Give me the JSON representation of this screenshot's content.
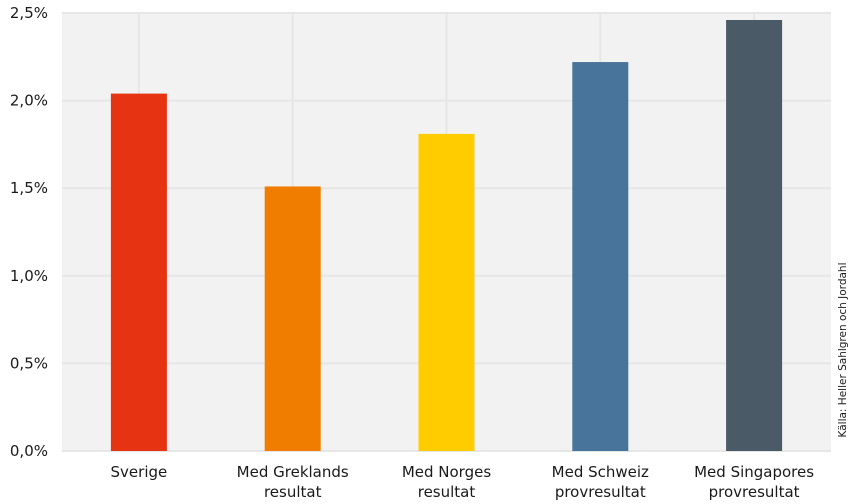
{
  "chart_data": {
    "type": "bar",
    "title": "",
    "xlabel": "",
    "ylabel": "",
    "categories": [
      [
        "Sverige"
      ],
      [
        "Med Greklands",
        "resultat"
      ],
      [
        "Med Norges",
        "resultat"
      ],
      [
        "Med Schweiz",
        "provresultat"
      ],
      [
        "Med Singapores",
        "provresultat"
      ]
    ],
    "values": [
      2.04,
      1.51,
      1.81,
      2.22,
      2.46
    ],
    "colors": [
      "#e63312",
      "#f07d00",
      "#ffcc00",
      "#48739a",
      "#4a5a66"
    ],
    "ylim": [
      0,
      2.5
    ],
    "yticks": [
      0,
      0.5,
      1.0,
      1.5,
      2.0,
      2.5
    ],
    "ytick_labels": [
      "0,0%",
      "0,5%",
      "1,0%",
      "1,5%",
      "2,0%",
      "2,5%"
    ],
    "grid": true,
    "grid_color": "#e6e6e6",
    "plot_background": "#f2f2f2",
    "source": "Källa: Heller Sahlgren och Jordahl"
  }
}
